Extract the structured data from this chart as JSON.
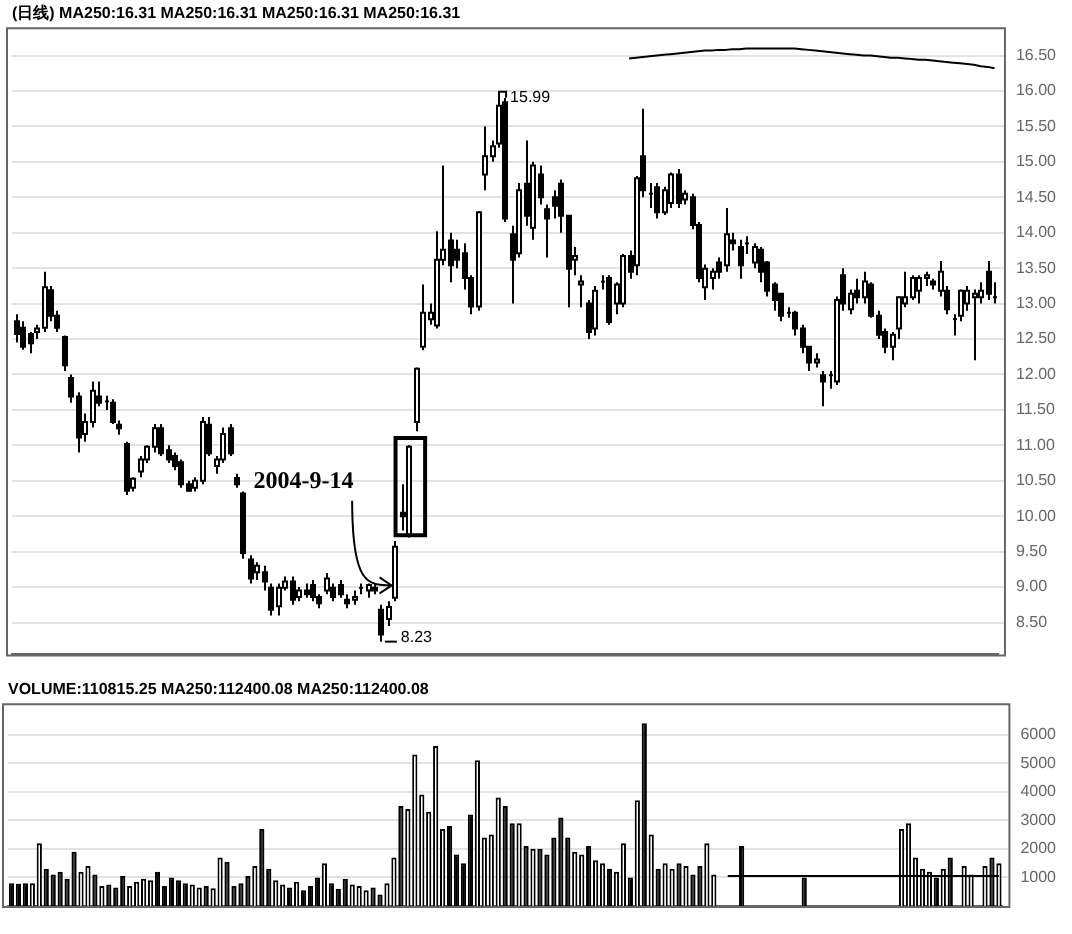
{
  "chart_data": [
    {
      "type": "candlestick",
      "title": "(日线) MA250:16.31 MA250:16.31 MA250:16.31 MA250:16.31",
      "categories": [
        null,
        null,
        null,
        null,
        null,
        null,
        null,
        null,
        null,
        null,
        null,
        null,
        null,
        null,
        null,
        null,
        null,
        null,
        null,
        null,
        null,
        null,
        null,
        null,
        null,
        null,
        null,
        null,
        null,
        null,
        null,
        null,
        null,
        null,
        null,
        null,
        null,
        null,
        null,
        null,
        null,
        null,
        null,
        null,
        null,
        null,
        null,
        null,
        null,
        null,
        null,
        null,
        null,
        null,
        null,
        null,
        null,
        null,
        null,
        null,
        null,
        null,
        null,
        null,
        null,
        null,
        null,
        null,
        null,
        null,
        null,
        null,
        null,
        null,
        null,
        null,
        null,
        null,
        null,
        null,
        null,
        null,
        null,
        null,
        null,
        null,
        null,
        null,
        null,
        null,
        null,
        null,
        null,
        null,
        null,
        null,
        null,
        null,
        null,
        null,
        null,
        null,
        null,
        null,
        null,
        null,
        null,
        null,
        null,
        null,
        null,
        null,
        null,
        null,
        null,
        null,
        null,
        null,
        null,
        null,
        null,
        null,
        null,
        null,
        null,
        null,
        null,
        null,
        null,
        null,
        null,
        null,
        null,
        null,
        null,
        null,
        null,
        null,
        null,
        null,
        null,
        null,
        null
      ],
      "ohlc": [
        [
          12.75,
          12.85,
          12.45,
          12.57
        ],
        [
          12.66,
          12.75,
          12.35,
          12.39
        ],
        [
          12.57,
          12.6,
          12.3,
          12.44
        ],
        [
          12.6,
          12.7,
          12.5,
          12.65
        ],
        [
          12.66,
          13.45,
          12.6,
          13.23
        ],
        [
          13.19,
          13.25,
          12.75,
          12.83
        ],
        [
          12.83,
          12.9,
          12.6,
          12.66
        ],
        [
          12.53,
          12.55,
          12.05,
          12.13
        ],
        [
          11.95,
          12.0,
          11.6,
          11.69
        ],
        [
          11.69,
          11.75,
          10.9,
          11.11
        ],
        [
          11.16,
          11.45,
          11.05,
          11.33
        ],
        [
          11.33,
          11.9,
          11.25,
          11.77
        ],
        [
          11.69,
          11.9,
          11.55,
          11.6
        ],
        [
          11.62,
          11.7,
          11.5,
          11.62
        ],
        [
          11.6,
          11.65,
          11.3,
          11.33
        ],
        [
          11.29,
          11.35,
          11.15,
          11.24
        ],
        [
          11.02,
          11.05,
          10.3,
          10.36
        ],
        [
          10.4,
          10.55,
          10.35,
          10.53
        ],
        [
          10.63,
          10.85,
          10.55,
          10.8
        ],
        [
          10.8,
          11.0,
          10.75,
          10.98
        ],
        [
          10.98,
          11.3,
          10.9,
          11.24
        ],
        [
          11.24,
          11.3,
          10.85,
          10.89
        ],
        [
          10.93,
          11.0,
          10.75,
          10.8
        ],
        [
          10.85,
          10.9,
          10.65,
          10.71
        ],
        [
          10.76,
          10.8,
          10.4,
          10.45
        ],
        [
          10.45,
          10.5,
          10.35,
          10.36
        ],
        [
          10.4,
          10.55,
          10.35,
          10.5
        ],
        [
          10.5,
          11.4,
          10.45,
          11.33
        ],
        [
          11.29,
          11.4,
          10.85,
          10.89
        ],
        [
          10.71,
          10.85,
          10.6,
          10.8
        ],
        [
          10.8,
          11.25,
          10.75,
          11.16
        ],
        [
          11.24,
          11.3,
          10.85,
          10.89
        ],
        [
          10.54,
          10.6,
          10.4,
          10.45
        ],
        [
          10.32,
          10.35,
          9.4,
          9.48
        ],
        [
          9.39,
          9.45,
          9.05,
          9.12
        ],
        [
          9.21,
          9.35,
          9.1,
          9.3
        ],
        [
          9.21,
          9.3,
          8.95,
          9.08
        ],
        [
          8.99,
          9.05,
          8.6,
          8.68
        ],
        [
          8.73,
          9.05,
          8.6,
          8.99
        ],
        [
          8.99,
          9.15,
          8.95,
          9.08
        ],
        [
          9.08,
          9.15,
          8.75,
          8.82
        ],
        [
          8.86,
          9.0,
          8.8,
          8.95
        ],
        [
          8.95,
          9.05,
          8.85,
          8.9
        ],
        [
          9.03,
          9.1,
          8.8,
          8.86
        ],
        [
          8.86,
          8.9,
          8.7,
          8.77
        ],
        [
          8.95,
          9.2,
          8.9,
          9.12
        ],
        [
          8.99,
          9.05,
          8.8,
          8.86
        ],
        [
          9.03,
          9.1,
          8.85,
          8.9
        ],
        [
          8.82,
          8.9,
          8.7,
          8.77
        ],
        [
          8.82,
          8.95,
          8.75,
          8.86
        ],
        [
          8.99,
          9.05,
          8.9,
          8.99
        ],
        [
          8.95,
          9.05,
          8.85,
          9.03
        ],
        [
          8.99,
          9.05,
          8.9,
          8.95
        ],
        [
          8.68,
          8.75,
          8.23,
          8.33
        ],
        [
          8.55,
          8.8,
          8.45,
          8.72
        ],
        [
          8.85,
          9.65,
          8.8,
          9.57
        ],
        [
          10.05,
          10.45,
          9.8,
          10.0
        ],
        [
          9.74,
          11.0,
          9.7,
          10.98
        ],
        [
          11.33,
          12.1,
          11.2,
          12.08
        ],
        [
          12.39,
          13.27,
          12.34,
          12.87
        ],
        [
          12.78,
          13.0,
          12.7,
          12.87
        ],
        [
          12.69,
          14.02,
          12.65,
          13.62
        ],
        [
          13.62,
          14.95,
          13.54,
          13.76
        ],
        [
          13.89,
          14.0,
          13.3,
          13.54
        ],
        [
          13.76,
          13.9,
          13.5,
          13.62
        ],
        [
          13.71,
          13.85,
          13.2,
          13.36
        ],
        [
          13.36,
          13.4,
          12.85,
          12.96
        ],
        [
          12.96,
          14.3,
          12.9,
          14.29
        ],
        [
          14.82,
          15.5,
          14.6,
          15.08
        ],
        [
          15.08,
          15.3,
          15.0,
          15.22
        ],
        [
          15.26,
          15.99,
          15.2,
          15.79
        ],
        [
          15.84,
          15.9,
          14.15,
          14.2
        ],
        [
          13.98,
          14.1,
          13.0,
          13.62
        ],
        [
          13.71,
          14.7,
          13.65,
          14.6
        ],
        [
          14.69,
          15.3,
          14.1,
          14.24
        ],
        [
          14.07,
          15.0,
          13.9,
          14.95
        ],
        [
          14.82,
          14.95,
          14.4,
          14.5
        ],
        [
          14.33,
          14.4,
          13.65,
          14.2
        ],
        [
          14.5,
          14.6,
          14.2,
          14.38
        ],
        [
          14.69,
          14.75,
          14.0,
          14.24
        ],
        [
          14.24,
          14.25,
          12.95,
          13.49
        ],
        [
          13.62,
          13.8,
          13.4,
          13.67
        ],
        [
          13.27,
          13.4,
          12.95,
          13.31
        ],
        [
          13.0,
          13.05,
          12.5,
          12.6
        ],
        [
          12.65,
          13.25,
          12.55,
          13.18
        ],
        [
          13.31,
          13.4,
          13.2,
          13.31
        ],
        [
          13.36,
          13.4,
          12.7,
          12.74
        ],
        [
          13.0,
          13.3,
          12.85,
          13.27
        ],
        [
          13.0,
          13.7,
          12.95,
          13.67
        ],
        [
          13.67,
          13.75,
          13.35,
          13.45
        ],
        [
          13.54,
          14.8,
          13.4,
          14.77
        ],
        [
          15.08,
          15.75,
          14.5,
          14.6
        ],
        [
          14.55,
          14.7,
          14.35,
          14.55
        ],
        [
          14.64,
          14.7,
          14.2,
          14.29
        ],
        [
          14.29,
          14.65,
          14.25,
          14.6
        ],
        [
          14.42,
          14.85,
          14.35,
          14.82
        ],
        [
          14.82,
          14.9,
          14.35,
          14.42
        ],
        [
          14.47,
          14.6,
          14.4,
          14.55
        ],
        [
          14.5,
          14.55,
          14.05,
          14.11
        ],
        [
          14.11,
          14.15,
          13.3,
          13.36
        ],
        [
          13.23,
          13.55,
          13.05,
          13.49
        ],
        [
          13.36,
          13.5,
          13.2,
          13.45
        ],
        [
          13.58,
          13.65,
          13.35,
          13.45
        ],
        [
          13.54,
          14.35,
          13.45,
          13.98
        ],
        [
          13.89,
          14.0,
          13.75,
          13.85
        ],
        [
          13.8,
          13.9,
          13.35,
          13.54
        ],
        [
          13.85,
          13.95,
          13.7,
          13.85
        ],
        [
          13.58,
          13.85,
          13.5,
          13.8
        ],
        [
          13.76,
          13.8,
          13.3,
          13.45
        ],
        [
          13.58,
          13.6,
          13.1,
          13.18
        ],
        [
          13.27,
          13.3,
          12.9,
          13.05
        ],
        [
          13.14,
          13.15,
          12.75,
          12.83
        ],
        [
          12.87,
          12.95,
          12.8,
          12.87
        ],
        [
          12.87,
          12.9,
          12.55,
          12.65
        ],
        [
          12.65,
          12.7,
          12.3,
          12.39
        ],
        [
          12.39,
          12.4,
          12.05,
          12.17
        ],
        [
          12.17,
          12.3,
          12.1,
          12.21
        ],
        [
          11.99,
          12.05,
          11.55,
          11.9
        ],
        [
          11.99,
          12.05,
          11.8,
          11.99
        ],
        [
          11.9,
          13.1,
          11.85,
          13.05
        ],
        [
          13.4,
          13.5,
          12.9,
          13.0
        ],
        [
          12.92,
          13.2,
          12.85,
          13.14
        ],
        [
          13.18,
          13.35,
          13.0,
          13.09
        ],
        [
          13.09,
          13.45,
          13.0,
          13.31
        ],
        [
          13.27,
          13.3,
          12.8,
          12.83
        ],
        [
          12.83,
          12.9,
          12.5,
          12.56
        ],
        [
          12.6,
          12.65,
          12.3,
          12.39
        ],
        [
          12.39,
          12.6,
          12.2,
          12.56
        ],
        [
          12.65,
          13.1,
          12.5,
          13.09
        ],
        [
          13.0,
          13.45,
          12.95,
          13.09
        ],
        [
          13.09,
          13.4,
          13.05,
          13.36
        ],
        [
          13.18,
          13.4,
          13.0,
          13.36
        ],
        [
          13.36,
          13.45,
          13.25,
          13.4
        ],
        [
          13.31,
          13.35,
          13.2,
          13.27
        ],
        [
          13.18,
          13.6,
          13.1,
          13.45
        ],
        [
          13.18,
          13.25,
          12.85,
          12.92
        ],
        [
          12.78,
          12.85,
          12.55,
          12.78
        ],
        [
          12.83,
          13.2,
          12.75,
          13.18
        ],
        [
          13.0,
          13.25,
          12.9,
          13.18
        ],
        [
          13.09,
          13.2,
          12.2,
          13.14
        ],
        [
          13.09,
          13.3,
          13.0,
          13.18
        ],
        [
          13.45,
          13.6,
          13.05,
          13.14
        ],
        [
          13.09,
          13.3,
          13.0,
          13.09
        ]
      ],
      "colors": [
        "#000000",
        "#000000",
        "#000000",
        "#ffffff",
        "#ffffff",
        "#000000",
        "#000000",
        "#000000",
        "#000000",
        "#000000",
        "#ffffff",
        "#ffffff",
        "#000000",
        "#000000",
        "#000000",
        "#000000",
        "#000000",
        "#ffffff",
        "#ffffff",
        "#ffffff",
        "#ffffff",
        "#000000",
        "#000000",
        "#000000",
        "#000000",
        "#000000",
        "#ffffff",
        "#ffffff",
        "#000000",
        "#ffffff",
        "#ffffff",
        "#000000",
        "#000000",
        "#000000",
        "#000000",
        "#ffffff",
        "#000000",
        "#000000",
        "#ffffff",
        "#ffffff",
        "#000000",
        "#ffffff",
        "#000000",
        "#000000",
        "#000000",
        "#ffffff",
        "#000000",
        "#000000",
        "#000000",
        "#ffffff",
        "#000000",
        "#ffffff",
        "#000000",
        "#000000",
        "#ffffff",
        "#ffffff",
        "#000000",
        "#ffffff",
        "#ffffff",
        "#ffffff",
        "#ffffff",
        "#ffffff",
        "#ffffff",
        "#000000",
        "#000000",
        "#000000",
        "#000000",
        "#ffffff",
        "#ffffff",
        "#ffffff",
        "#ffffff",
        "#000000",
        "#000000",
        "#ffffff",
        "#000000",
        "#ffffff",
        "#000000",
        "#000000",
        "#000000",
        "#000000",
        "#000000",
        "#ffffff",
        "#ffffff",
        "#000000",
        "#ffffff",
        "#000000",
        "#000000",
        "#ffffff",
        "#ffffff",
        "#000000",
        "#ffffff",
        "#000000",
        "#000000",
        "#000000",
        "#ffffff",
        "#ffffff",
        "#000000",
        "#ffffff",
        "#000000",
        "#000000",
        "#ffffff",
        "#ffffff",
        "#000000",
        "#ffffff",
        "#000000",
        "#000000",
        "#000000",
        "#ffffff",
        "#000000",
        "#000000",
        "#000000",
        "#000000",
        "#000000",
        "#000000",
        "#000000",
        "#000000",
        "#ffffff",
        "#000000",
        "#000000",
        "#ffffff",
        "#000000",
        "#ffffff",
        "#000000",
        "#ffffff",
        "#000000",
        "#000000",
        "#000000",
        "#ffffff",
        "#ffffff",
        "#ffffff",
        "#ffffff",
        "#ffffff",
        "#ffffff",
        "#000000",
        "#ffffff",
        "#000000",
        "#000000",
        "#ffffff",
        "#ffffff",
        "#ffffff",
        "#ffffff",
        "#000000",
        "#000000"
      ],
      "series": [
        {
          "type": "line",
          "color": "#000000",
          "values": [
            null,
            null,
            null,
            null,
            null,
            null,
            null,
            null,
            null,
            null,
            null,
            null,
            null,
            null,
            null,
            null,
            null,
            null,
            null,
            null,
            null,
            null,
            null,
            null,
            null,
            null,
            null,
            null,
            null,
            null,
            null,
            null,
            null,
            null,
            null,
            null,
            null,
            null,
            null,
            null,
            null,
            null,
            null,
            null,
            null,
            null,
            null,
            null,
            null,
            null,
            null,
            null,
            null,
            null,
            null,
            null,
            null,
            null,
            null,
            null,
            null,
            null,
            null,
            null,
            null,
            null,
            null,
            null,
            null,
            null,
            null,
            null,
            null,
            null,
            null,
            null,
            null,
            null,
            null,
            null,
            null,
            null,
            null,
            null,
            null,
            null,
            null,
            null,
            null,
            16.46,
            16.47,
            16.48,
            16.49,
            16.5,
            16.51,
            16.52,
            16.53,
            16.54,
            16.55,
            16.56,
            16.57,
            16.57,
            16.58,
            16.58,
            16.59,
            16.59,
            16.6,
            16.6,
            16.6,
            16.6,
            16.6,
            16.6,
            16.6,
            16.6,
            16.59,
            16.58,
            16.57,
            16.56,
            16.55,
            16.54,
            16.53,
            16.52,
            16.51,
            16.5,
            16.5,
            16.49,
            16.48,
            16.47,
            16.47,
            16.46,
            16.45,
            16.44,
            16.44,
            16.43,
            16.42,
            16.41,
            16.4,
            16.39,
            16.38,
            16.37,
            16.35,
            16.34,
            16.32
          ]
        }
      ],
      "ylim": [
        8.05,
        16.9
      ],
      "yticks": [
        {
          "value": 8.5,
          "label": "8.50"
        },
        {
          "value": 9,
          "label": "9.00"
        },
        {
          "value": 9.5,
          "label": "9.50"
        },
        {
          "value": 10,
          "label": "10.00"
        },
        {
          "value": 10.5,
          "label": "10.50"
        },
        {
          "value": 11,
          "label": "11.00"
        },
        {
          "value": 11.5,
          "label": "11.50"
        },
        {
          "value": 12,
          "label": "12.00"
        },
        {
          "value": 12.5,
          "label": "12.50"
        },
        {
          "value": 13,
          "label": "13.00"
        },
        {
          "value": 13.5,
          "label": "13.50"
        },
        {
          "value": 14,
          "label": "14.00"
        },
        {
          "value": 14.5,
          "label": "14.50"
        },
        {
          "value": 15,
          "label": "15.00"
        },
        {
          "value": 15.5,
          "label": "15.50"
        },
        {
          "value": 16,
          "label": "16.00"
        },
        {
          "value": 16.5,
          "label": "16.50"
        }
      ],
      "grid": "y",
      "tick_labels": "y",
      "annotations": [
        "15.99",
        "8.23",
        "2004-9-14"
      ]
    },
    {
      "type": "bar",
      "title": "VOLUME:110815.25 MA250:112400.08 MA250:112400.08",
      "categories": [
        null,
        null,
        null,
        null,
        null,
        null,
        null,
        null,
        null,
        null,
        null,
        null,
        null,
        null,
        null,
        null,
        null,
        null,
        null,
        null,
        null,
        null,
        null,
        null,
        null,
        null,
        null,
        null,
        null,
        null,
        null,
        null,
        null,
        null,
        null,
        null,
        null,
        null,
        null,
        null,
        null,
        null,
        null,
        null,
        null,
        null,
        null,
        null,
        null,
        null,
        null,
        null,
        null,
        null,
        null,
        null,
        null,
        null,
        null,
        null,
        null,
        null,
        null,
        null,
        null,
        null,
        null,
        null,
        null,
        null,
        null,
        null,
        null,
        null,
        null,
        null,
        null,
        null,
        null,
        null,
        null,
        null,
        null,
        null,
        null,
        null,
        null,
        null,
        null,
        null,
        null,
        null,
        null,
        null,
        null,
        null,
        null,
        null,
        null,
        null,
        null,
        null,
        null,
        null,
        null,
        null,
        null,
        null,
        null,
        null,
        null,
        null,
        null,
        null,
        null,
        null,
        null,
        null,
        null,
        null,
        null,
        null,
        null,
        null,
        null,
        null,
        null,
        null,
        null,
        null,
        null,
        null,
        null,
        null,
        null,
        null,
        null,
        null,
        null,
        null,
        null,
        null,
        null
      ],
      "values": [
        800,
        780,
        800,
        800,
        2200,
        1300,
        1100,
        1200,
        950,
        1900,
        1200,
        1400,
        1100,
        700,
        750,
        650,
        1050,
        700,
        850,
        950,
        900,
        1200,
        700,
        1000,
        900,
        800,
        750,
        650,
        700,
        620,
        1700,
        1550,
        700,
        800,
        1050,
        1400,
        2700,
        1300,
        900,
        750,
        650,
        850,
        550,
        700,
        1000,
        1500,
        800,
        600,
        950,
        750,
        700,
        550,
        650,
        400,
        800,
        1700,
        3500,
        3400,
        5300,
        3900,
        3300,
        5600,
        2700,
        2800,
        1800,
        1500,
        3200,
        5100,
        2400,
        2500,
        3800,
        3500,
        2900,
        2900,
        2100,
        2000,
        2000,
        1800,
        2400,
        3100,
        2400,
        1900,
        1800,
        2100,
        1600,
        1500,
        1300,
        1200,
        2200,
        1000,
        3700,
        6400,
        2500,
        1300,
        1500,
        1300,
        1500,
        1400,
        1100,
        1400,
        2200,
        1100,
        null,
        null,
        null,
        2100,
        null,
        null,
        null,
        null,
        null,
        null,
        null,
        null,
        1000,
        null,
        null,
        null,
        null,
        null,
        null,
        null,
        null,
        null,
        null,
        null,
        null,
        null,
        2700,
        2900,
        1700,
        1300,
        1200,
        1000,
        1300,
        1700,
        null,
        1400,
        1100,
        null,
        1400,
        1700,
        1500
      ],
      "colors": [
        "#000000",
        "#000000",
        "#000000",
        "#ffffff",
        "#ffffff",
        "#000000",
        "#000000",
        "#000000",
        "#000000",
        "#000000",
        "#ffffff",
        "#ffffff",
        "#000000",
        "#ffffff",
        "#000000",
        "#000000",
        "#000000",
        "#ffffff",
        "#ffffff",
        "#ffffff",
        "#ffffff",
        "#000000",
        "#000000",
        "#000000",
        "#000000",
        "#000000",
        "#ffffff",
        "#ffffff",
        "#000000",
        "#ffffff",
        "#ffffff",
        "#000000",
        "#000000",
        "#000000",
        "#000000",
        "#ffffff",
        "#000000",
        "#000000",
        "#ffffff",
        "#ffffff",
        "#000000",
        "#ffffff",
        "#000000",
        "#000000",
        "#000000",
        "#ffffff",
        "#000000",
        "#000000",
        "#000000",
        "#ffffff",
        "#ffffff",
        "#ffffff",
        "#000000",
        "#000000",
        "#ffffff",
        "#ffffff",
        "#000000",
        "#ffffff",
        "#ffffff",
        "#ffffff",
        "#ffffff",
        "#ffffff",
        "#ffffff",
        "#000000",
        "#000000",
        "#000000",
        "#000000",
        "#ffffff",
        "#ffffff",
        "#ffffff",
        "#ffffff",
        "#000000",
        "#000000",
        "#ffffff",
        "#000000",
        "#ffffff",
        "#000000",
        "#000000",
        "#000000",
        "#000000",
        "#000000",
        "#ffffff",
        "#ffffff",
        "#000000",
        "#ffffff",
        "#ffffff",
        "#000000",
        "#ffffff",
        "#ffffff",
        "#000000",
        "#ffffff",
        "#000000",
        "#ffffff",
        "#000000",
        "#ffffff",
        "#ffffff",
        "#000000",
        "#ffffff",
        "#000000",
        "#000000",
        "#ffffff",
        "#ffffff",
        "#000000",
        "#ffffff",
        "#000000",
        "#000000",
        "#ffffff",
        "#ffffff",
        "#000000",
        "#000000",
        "#000000",
        "#000000",
        "#ffffff",
        "#000000",
        "#000000",
        "#000000",
        "#ffffff",
        "#000000",
        "#ffffff",
        "#ffffff",
        "#000000",
        "#ffffff",
        "#000000",
        "#ffffff",
        "#000000",
        "#000000",
        "#000000",
        "#ffffff",
        "#ffffff",
        "#ffffff",
        "#ffffff",
        "#ffffff",
        "#ffffff",
        "#000000",
        "#ffffff",
        "#000000",
        "#ffffff",
        "#ffffff",
        "#ffffff",
        "#ffffff",
        "#ffffff",
        "#000000",
        "#ffffff"
      ],
      "series": [
        {
          "type": "line",
          "color": "#000000",
          "values": [
            null,
            null,
            null,
            null,
            null,
            null,
            null,
            null,
            null,
            null,
            null,
            null,
            null,
            null,
            null,
            null,
            null,
            null,
            null,
            null,
            null,
            null,
            null,
            null,
            null,
            null,
            null,
            null,
            null,
            null,
            null,
            null,
            null,
            null,
            null,
            null,
            null,
            null,
            null,
            null,
            null,
            null,
            null,
            null,
            null,
            null,
            null,
            null,
            null,
            null,
            null,
            null,
            null,
            null,
            null,
            null,
            null,
            null,
            null,
            null,
            null,
            null,
            null,
            null,
            null,
            null,
            null,
            null,
            null,
            null,
            null,
            null,
            null,
            null,
            null,
            null,
            null,
            null,
            null,
            null,
            null,
            null,
            null,
            null,
            null,
            null,
            null,
            null,
            null,
            null,
            null,
            null,
            null,
            null,
            null,
            null,
            null,
            null,
            null,
            null,
            null,
            null,
            null,
            1050,
            1050,
            1050,
            1050,
            1050,
            1050,
            1050,
            1050,
            1050,
            1050,
            1050,
            1050,
            1050,
            1050,
            1050,
            1050,
            1050,
            1050,
            1050,
            1050,
            1050,
            1050,
            1050,
            1050,
            1050,
            1050,
            1050,
            1050,
            1050,
            1050,
            1050,
            1050,
            1050,
            1050,
            1050,
            1050,
            1050,
            1050,
            1050,
            1050
          ]
        }
      ],
      "ylim": [
        0,
        7100
      ],
      "yticks": [
        1000,
        2000,
        3000,
        4000,
        5000,
        6000
      ],
      "grid": "y",
      "tick_labels": "y"
    }
  ]
}
